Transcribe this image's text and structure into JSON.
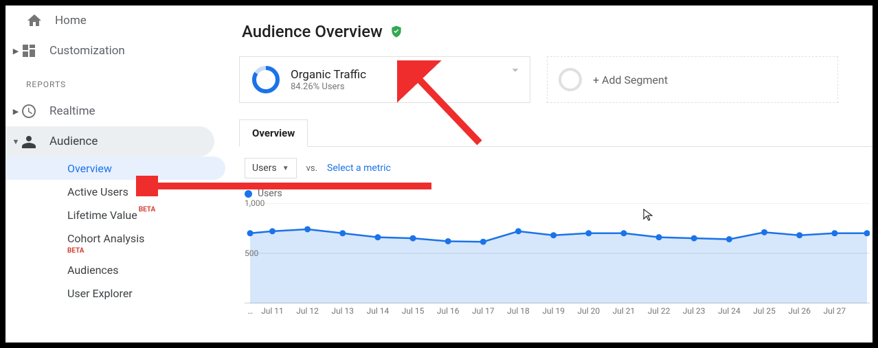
{
  "sidebar": {
    "home": "Home",
    "customization": "Customization",
    "reports_header": "REPORTS",
    "realtime": "Realtime",
    "audience": "Audience",
    "audience_sub": {
      "overview": "Overview",
      "active_users": "Active Users",
      "lifetime_value": "Lifetime Value",
      "cohort": "Cohort Analysis",
      "audiences": "Audiences",
      "user_explorer": "User Explorer",
      "beta": "BETA"
    }
  },
  "page": {
    "title": "Audience Overview"
  },
  "segment": {
    "title": "Organic Traffic",
    "sub": "84.26% Users",
    "ring_percent": 84.26,
    "ring_color": "#1a73e8",
    "ring_track": "#c7dbf7"
  },
  "add_segment": {
    "label": "+ Add Segment"
  },
  "tabs": {
    "overview": "Overview"
  },
  "toolbar": {
    "metric_label": "Users",
    "vs": "vs.",
    "select_metric": "Select a metric"
  },
  "legend": {
    "series": "Users",
    "color": "#1a73e8"
  },
  "chart": {
    "type": "line",
    "series_color": "#1a73e8",
    "area_color": "#1a73e8",
    "grid_color": "#e0e0e0",
    "baseline_color": "#bdbdbd",
    "background_color": "#ffffff",
    "y": {
      "min": 0,
      "max": 1000,
      "ticks": [
        500,
        1000
      ]
    },
    "categories": [
      "Jul 11",
      "Jul 12",
      "Jul 13",
      "Jul 14",
      "Jul 15",
      "Jul 16",
      "Jul 17",
      "Jul 18",
      "Jul 19",
      "Jul 20",
      "Jul 21",
      "Jul 22",
      "Jul 23",
      "Jul 24",
      "Jul 25",
      "Jul 26",
      "Jul 27"
    ],
    "values": [
      720,
      740,
      700,
      660,
      650,
      620,
      615,
      720,
      680,
      700,
      700,
      660,
      650,
      640,
      710,
      680,
      700
    ],
    "leading_value": 700,
    "trailing_value": 700,
    "dot_radius": 4.5,
    "line_width": 2.5
  },
  "arrows": {
    "color": "#ef2d2d"
  },
  "ylabels": {
    "l1000": "1,000",
    "l500": "500"
  }
}
